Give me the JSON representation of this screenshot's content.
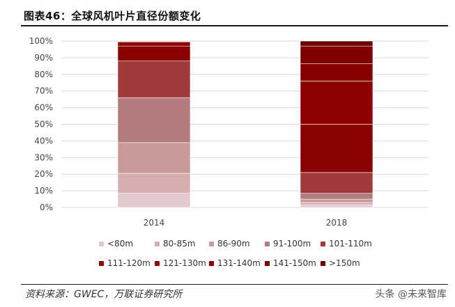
{
  "title": "图表46：全球风机叶片直径份额变化",
  "source": "资料来源：GWEC，万联证券研究所",
  "watermark": "头条 @未来智库",
  "chart_data": {
    "type": "bar",
    "stacked": true,
    "categories": [
      "2014",
      "2018"
    ],
    "ylim": [
      0,
      100
    ],
    "yticks": [
      "0%",
      "10%",
      "20%",
      "30%",
      "40%",
      "50%",
      "60%",
      "70%",
      "80%",
      "90%",
      "100%"
    ],
    "grid": true,
    "legend_position": "bottom",
    "series": [
      {
        "name": "<80m",
        "color": "#e2c9cb",
        "values": [
          8.5,
          1.5
        ]
      },
      {
        "name": "80-85m",
        "color": "#d6aeb0",
        "values": [
          12.0,
          1.5
        ]
      },
      {
        "name": "86-90m",
        "color": "#c99899",
        "values": [
          18.5,
          2.0
        ]
      },
      {
        "name": "91-100m",
        "color": "#b27b7c",
        "values": [
          27.0,
          3.5
        ]
      },
      {
        "name": "101-110m",
        "color": "#a23a3c",
        "values": [
          22.0,
          12.5
        ]
      },
      {
        "name": "111-120m",
        "color": "#8b0000",
        "values": [
          9.0,
          29.0
        ]
      },
      {
        "name": "121-130m",
        "color": "#8f0002",
        "values": [
          2.5,
          26.0
        ]
      },
      {
        "name": "131-140m",
        "color": "#870000",
        "values": [
          0,
          10.5
        ]
      },
      {
        "name": "141-150m",
        "color": "#7f0000",
        "values": [
          0,
          10.5
        ]
      },
      {
        "name": ">150m",
        "color": "#6e0000",
        "values": [
          0,
          3.0
        ]
      }
    ]
  }
}
